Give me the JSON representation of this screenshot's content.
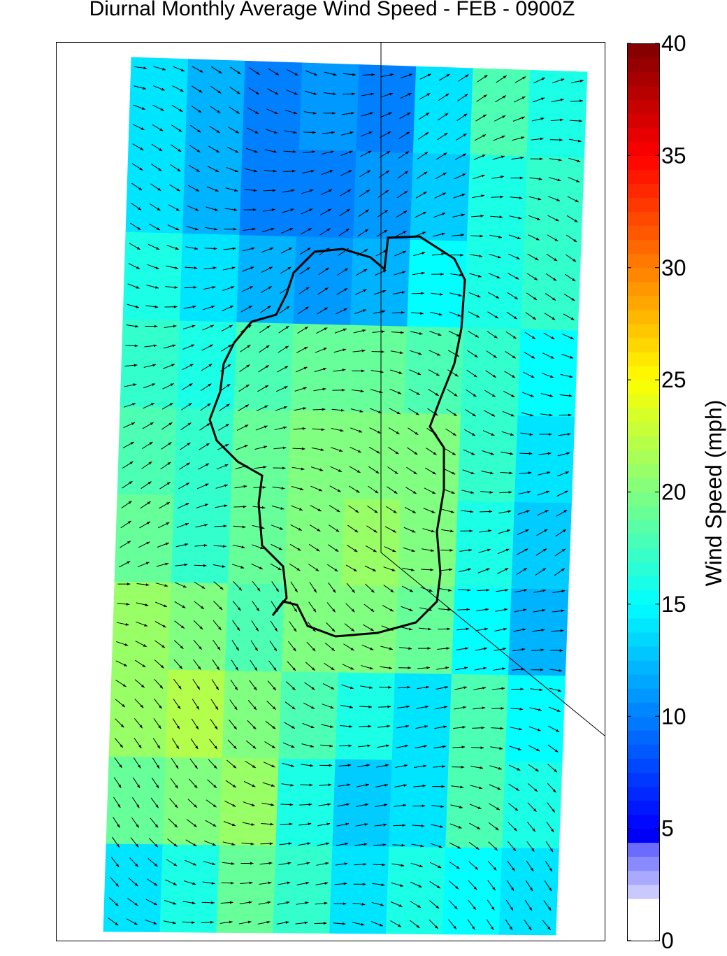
{
  "chart_data": {
    "type": "heatmap",
    "title": "Diurnal Monthly Average Wind Speed - FEB - 0900Z",
    "colorbar_label": "Wind Speed (mph)",
    "colormap": "jet",
    "clim": [
      0,
      40
    ],
    "cticks": [
      0,
      5,
      10,
      15,
      20,
      25,
      30,
      35,
      40
    ],
    "values": [
      [
        14,
        12,
        10,
        11,
        10,
        14,
        18,
        16
      ],
      [
        14,
        12,
        10,
        10,
        11,
        13,
        16,
        17
      ],
      [
        16,
        14,
        12,
        11,
        12,
        15,
        16,
        17
      ],
      [
        17,
        16,
        18,
        19,
        19,
        18,
        17,
        15
      ],
      [
        18,
        17,
        19,
        20,
        20,
        20,
        17,
        14
      ],
      [
        19,
        17,
        19,
        20,
        21,
        20,
        16,
        13
      ],
      [
        21,
        20,
        18,
        20,
        20,
        19,
        15,
        12
      ],
      [
        21,
        22,
        20,
        18,
        16,
        14,
        18,
        15
      ],
      [
        19,
        20,
        21,
        16,
        13,
        14,
        18,
        16
      ],
      [
        14,
        16,
        19,
        17,
        14,
        16,
        15,
        14
      ]
    ]
  }
}
